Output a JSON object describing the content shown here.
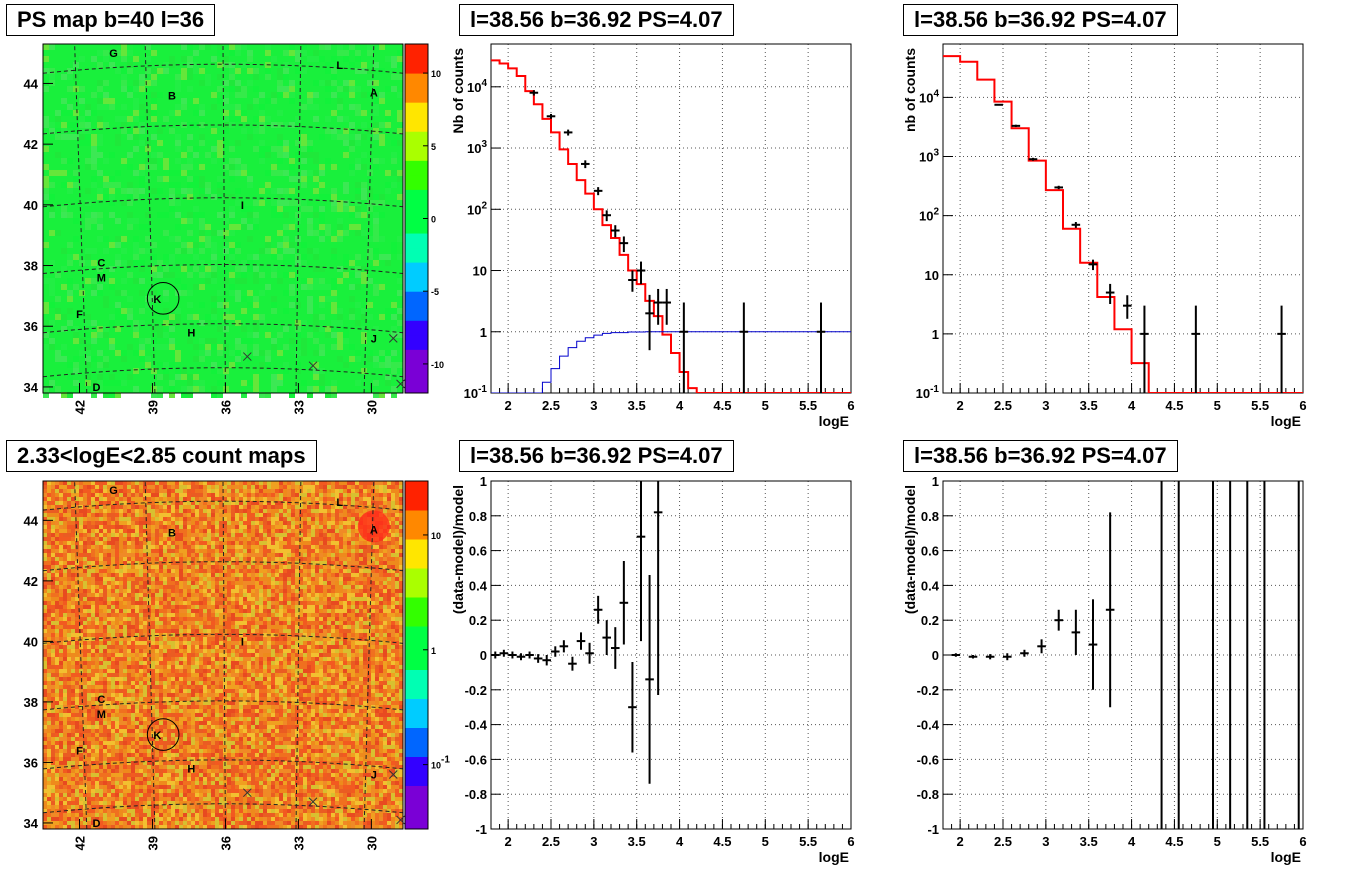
{
  "figure_title": "",
  "chart_data": [
    {
      "id": "psmap",
      "type": "heatmap",
      "title": "PS map b=40 l=36",
      "xticks": [
        "42",
        "39",
        "36",
        "33",
        "30"
      ],
      "yticks": [
        "44",
        "42",
        "40",
        "38",
        "36",
        "34"
      ],
      "xlim": [
        43.5,
        28.7
      ],
      "ylim": [
        33.8,
        45.3
      ],
      "colorbar": {
        "scale": "linear",
        "range": [
          -12,
          12
        ],
        "ticks": [
          "10",
          "5",
          "0",
          "-5",
          "-10"
        ],
        "colors": [
          "#7a00d6",
          "#3300ff",
          "#0066ff",
          "#00ccff",
          "#00ffb3",
          "#00ff44",
          "#33ff00",
          "#aaff00",
          "#ffe600",
          "#ff8800",
          "#ff2200"
        ]
      },
      "background_color": "#19f03c",
      "sources": [
        {
          "label": "G",
          "l": 40.6,
          "b": 45.0
        },
        {
          "label": "L",
          "l": 31.3,
          "b": 44.6
        },
        {
          "label": "A",
          "l": 29.9,
          "b": 43.7
        },
        {
          "label": "B",
          "l": 38.2,
          "b": 43.6
        },
        {
          "label": "I",
          "l": 35.3,
          "b": 40.0
        },
        {
          "label": "C",
          "l": 41.1,
          "b": 38.1
        },
        {
          "label": "M",
          "l": 41.1,
          "b": 37.6
        },
        {
          "label": "K",
          "l": 38.8,
          "b": 36.9
        },
        {
          "label": "F",
          "l": 42.0,
          "b": 36.4
        },
        {
          "label": "H",
          "l": 37.4,
          "b": 35.8
        },
        {
          "label": "J",
          "l": 29.9,
          "b": 35.6
        },
        {
          "label": "D",
          "l": 41.3,
          "b": 34.0
        }
      ],
      "circle": {
        "l": 38.56,
        "b": 36.92,
        "radius_deg": 0.65
      },
      "crosses": [
        {
          "l": 35.1,
          "b": 35.0
        },
        {
          "l": 32.4,
          "b": 34.7
        },
        {
          "l": 29.1,
          "b": 35.6
        },
        {
          "l": 28.8,
          "b": 34.1
        }
      ]
    },
    {
      "id": "spec1",
      "type": "line",
      "title": "l=38.56 b=36.92 PS=4.07",
      "xlabel": "logE",
      "ylabel": "Nb of counts",
      "xlim": [
        1.8,
        6.0
      ],
      "ylim": [
        0.1,
        50000
      ],
      "yscale": "log",
      "xticks": [
        "2",
        "2.5",
        "3",
        "3.5",
        "4",
        "4.5",
        "5",
        "5.5",
        "6"
      ],
      "yticks": [
        "10^-1",
        "1",
        "10",
        "10^2",
        "10^3",
        "10^4"
      ],
      "grid": true,
      "series": [
        {
          "color": "#ff0000",
          "style": "step",
          "x": [
            1.8,
            1.9,
            2.0,
            2.1,
            2.2,
            2.3,
            2.4,
            2.5,
            2.6,
            2.7,
            2.8,
            2.9,
            3.0,
            3.1,
            3.2,
            3.3,
            3.4,
            3.5,
            3.6,
            3.7,
            3.8,
            3.9,
            4.0,
            4.1,
            4.2,
            6.0
          ],
          "y": [
            27000,
            24000,
            20000,
            15000,
            8500,
            5200,
            3000,
            1800,
            950,
            550,
            300,
            180,
            100,
            55,
            34,
            18,
            10,
            6,
            3.2,
            1.8,
            0.9,
            0.45,
            0.22,
            0.12,
            0.1,
            0.1
          ]
        },
        {
          "color": "#0000cc",
          "style": "step",
          "x": [
            1.8,
            2.3,
            2.4,
            2.5,
            2.6,
            2.7,
            2.8,
            2.9,
            3.0,
            3.1,
            3.2,
            3.4,
            3.6,
            6.0
          ],
          "y": [
            0.1,
            0.1,
            0.15,
            0.25,
            0.4,
            0.55,
            0.7,
            0.8,
            0.88,
            0.94,
            0.97,
            0.99,
            1.0,
            1.0
          ]
        },
        {
          "color": "#000000",
          "style": "errorbars",
          "x": [
            2.3,
            2.5,
            2.7,
            2.9,
            3.05,
            3.15,
            3.25,
            3.35,
            3.45,
            3.55,
            3.65,
            3.75,
            3.85,
            4.05,
            4.75,
            5.65
          ],
          "y": [
            8000,
            3300,
            1800,
            550,
            200,
            80,
            45,
            28,
            7,
            10,
            2,
            3,
            3,
            1,
            1,
            1
          ],
          "err_lo": [
            7200,
            3000,
            1600,
            470,
            170,
            64,
            35,
            20,
            4.5,
            6,
            0.5,
            1.3,
            1.3,
            0.1,
            0.1,
            0.1
          ],
          "err_hi": [
            8800,
            3600,
            2000,
            630,
            230,
            96,
            55,
            36,
            10,
            14,
            4,
            5,
            5,
            3,
            3,
            3
          ]
        }
      ]
    },
    {
      "id": "spec2",
      "type": "line",
      "title": "l=38.56 b=36.92 PS=4.07",
      "xlabel": "logE",
      "ylabel": "nb of counts",
      "xlim": [
        1.8,
        6.0
      ],
      "ylim": [
        0.1,
        80000
      ],
      "yscale": "log",
      "xticks": [
        "2",
        "2.5",
        "3",
        "3.5",
        "4",
        "4.5",
        "5",
        "5.5",
        "6"
      ],
      "yticks": [
        "10^-1",
        "1",
        "10",
        "10^2",
        "10^3",
        "10^4"
      ],
      "grid": true,
      "series": [
        {
          "color": "#ff0000",
          "style": "step",
          "x": [
            1.8,
            2.0,
            2.2,
            2.4,
            2.6,
            2.8,
            3.0,
            3.2,
            3.4,
            3.6,
            3.8,
            4.0,
            4.2,
            4.4,
            6.0
          ],
          "y": [
            50000,
            40000,
            20000,
            8500,
            3000,
            850,
            270,
            60,
            16,
            4.2,
            1.2,
            0.32,
            0.1,
            0.1,
            0.1
          ]
        },
        {
          "color": "#000000",
          "style": "errorbars",
          "x": [
            2.45,
            2.65,
            2.85,
            3.15,
            3.35,
            3.55,
            3.75,
            3.95,
            4.15,
            4.75,
            5.75
          ],
          "y": [
            7500,
            3300,
            900,
            300,
            70,
            15,
            5,
            3,
            1,
            1,
            1
          ],
          "err_lo": [
            7300,
            3150,
            850,
            280,
            62,
            12,
            3.2,
            1.8,
            0.1,
            0.1,
            0.1
          ],
          "err_hi": [
            7700,
            3450,
            950,
            320,
            78,
            18,
            7,
            4.5,
            3,
            3,
            3
          ]
        }
      ]
    },
    {
      "id": "countmap",
      "type": "heatmap",
      "title": "2.33<logE<2.85 count maps",
      "xticks": [
        "42",
        "39",
        "36",
        "33",
        "30"
      ],
      "yticks": [
        "44",
        "42",
        "40",
        "38",
        "36",
        "34"
      ],
      "xlim": [
        43.5,
        28.7
      ],
      "ylim": [
        33.8,
        45.3
      ],
      "colorbar": {
        "scale": "log",
        "ticks": [
          "10",
          "1",
          "10^-1"
        ],
        "colors": [
          "#7a00d6",
          "#3300ff",
          "#0066ff",
          "#00ccff",
          "#00ffb3",
          "#00ff44",
          "#33ff00",
          "#aaff00",
          "#ffe600",
          "#ff8800",
          "#ff2200"
        ]
      },
      "background_color": "#f0701f",
      "sources": [
        {
          "label": "G",
          "l": 40.6,
          "b": 45.0
        },
        {
          "label": "L",
          "l": 31.3,
          "b": 44.6
        },
        {
          "label": "A",
          "l": 29.9,
          "b": 43.7
        },
        {
          "label": "B",
          "l": 38.2,
          "b": 43.6
        },
        {
          "label": "I",
          "l": 35.3,
          "b": 40.0
        },
        {
          "label": "C",
          "l": 41.1,
          "b": 38.1
        },
        {
          "label": "M",
          "l": 41.1,
          "b": 37.6
        },
        {
          "label": "K",
          "l": 38.8,
          "b": 36.9
        },
        {
          "label": "F",
          "l": 42.0,
          "b": 36.4
        },
        {
          "label": "H",
          "l": 37.4,
          "b": 35.8
        },
        {
          "label": "J",
          "l": 29.9,
          "b": 35.6
        },
        {
          "label": "D",
          "l": 41.3,
          "b": 34.0
        }
      ],
      "circle": {
        "l": 38.56,
        "b": 36.92,
        "radius_deg": 0.65
      },
      "crosses": [
        {
          "l": 35.1,
          "b": 35.0
        },
        {
          "l": 32.4,
          "b": 34.7
        },
        {
          "l": 29.1,
          "b": 35.6
        },
        {
          "l": 28.8,
          "b": 34.1
        }
      ]
    },
    {
      "id": "resid1",
      "type": "scatter",
      "title": "l=38.56 b=36.92 PS=4.07",
      "xlabel": "logE",
      "ylabel": "(data-model)/model",
      "xlim": [
        1.8,
        6.0
      ],
      "ylim": [
        -1,
        1
      ],
      "xticks": [
        "2",
        "2.5",
        "3",
        "3.5",
        "4",
        "4.5",
        "5",
        "5.5",
        "6"
      ],
      "yticks": [
        "-1",
        "-0.8",
        "-0.6",
        "-0.4",
        "-0.2",
        "0",
        "0.2",
        "0.4",
        "0.6",
        "0.8",
        "1"
      ],
      "grid": true,
      "series": [
        {
          "color": "#000000",
          "style": "errorbars",
          "x": [
            1.85,
            1.95,
            2.05,
            2.15,
            2.25,
            2.35,
            2.45,
            2.55,
            2.65,
            2.75,
            2.85,
            2.95,
            3.05,
            3.15,
            3.25,
            3.35,
            3.45,
            3.55,
            3.65,
            3.75
          ],
          "y": [
            0.0,
            0.01,
            0.0,
            -0.01,
            0.0,
            -0.02,
            -0.03,
            0.02,
            0.05,
            -0.05,
            0.08,
            0.01,
            0.26,
            0.1,
            0.04,
            0.3,
            -0.3,
            0.68,
            -0.14,
            0.82
          ],
          "err": [
            0.02,
            0.02,
            0.02,
            0.02,
            0.02,
            0.025,
            0.03,
            0.03,
            0.035,
            0.04,
            0.05,
            0.06,
            0.08,
            0.1,
            0.12,
            0.24,
            0.26,
            0.6,
            0.6,
            1.05
          ]
        }
      ]
    },
    {
      "id": "resid2",
      "type": "scatter",
      "title": "l=38.56 b=36.92 PS=4.07",
      "xlabel": "logE",
      "ylabel": "(data-model)/model",
      "xlim": [
        1.8,
        6.0
      ],
      "ylim": [
        -1,
        1
      ],
      "xticks": [
        "2",
        "2.5",
        "3",
        "3.5",
        "4",
        "4.5",
        "5",
        "5.5",
        "6"
      ],
      "yticks": [
        "-1",
        "-0.8",
        "-0.6",
        "-0.4",
        "-0.2",
        "0",
        "0.2",
        "0.4",
        "0.6",
        "0.8",
        "1"
      ],
      "grid": true,
      "series": [
        {
          "color": "#000000",
          "style": "errorbars",
          "x": [
            1.95,
            2.15,
            2.35,
            2.55,
            2.75,
            2.95,
            3.15,
            3.35,
            3.55,
            3.75
          ],
          "y": [
            0.0,
            -0.01,
            -0.01,
            -0.01,
            0.01,
            0.05,
            0.2,
            0.13,
            0.06,
            0.26
          ],
          "err": [
            0.01,
            0.01,
            0.015,
            0.02,
            0.02,
            0.04,
            0.06,
            0.13,
            0.26,
            0.56
          ]
        },
        {
          "color": "#000000",
          "style": "vlines",
          "x": [
            4.35,
            4.55,
            4.95,
            5.15,
            5.35,
            5.55,
            5.95
          ]
        }
      ]
    }
  ]
}
